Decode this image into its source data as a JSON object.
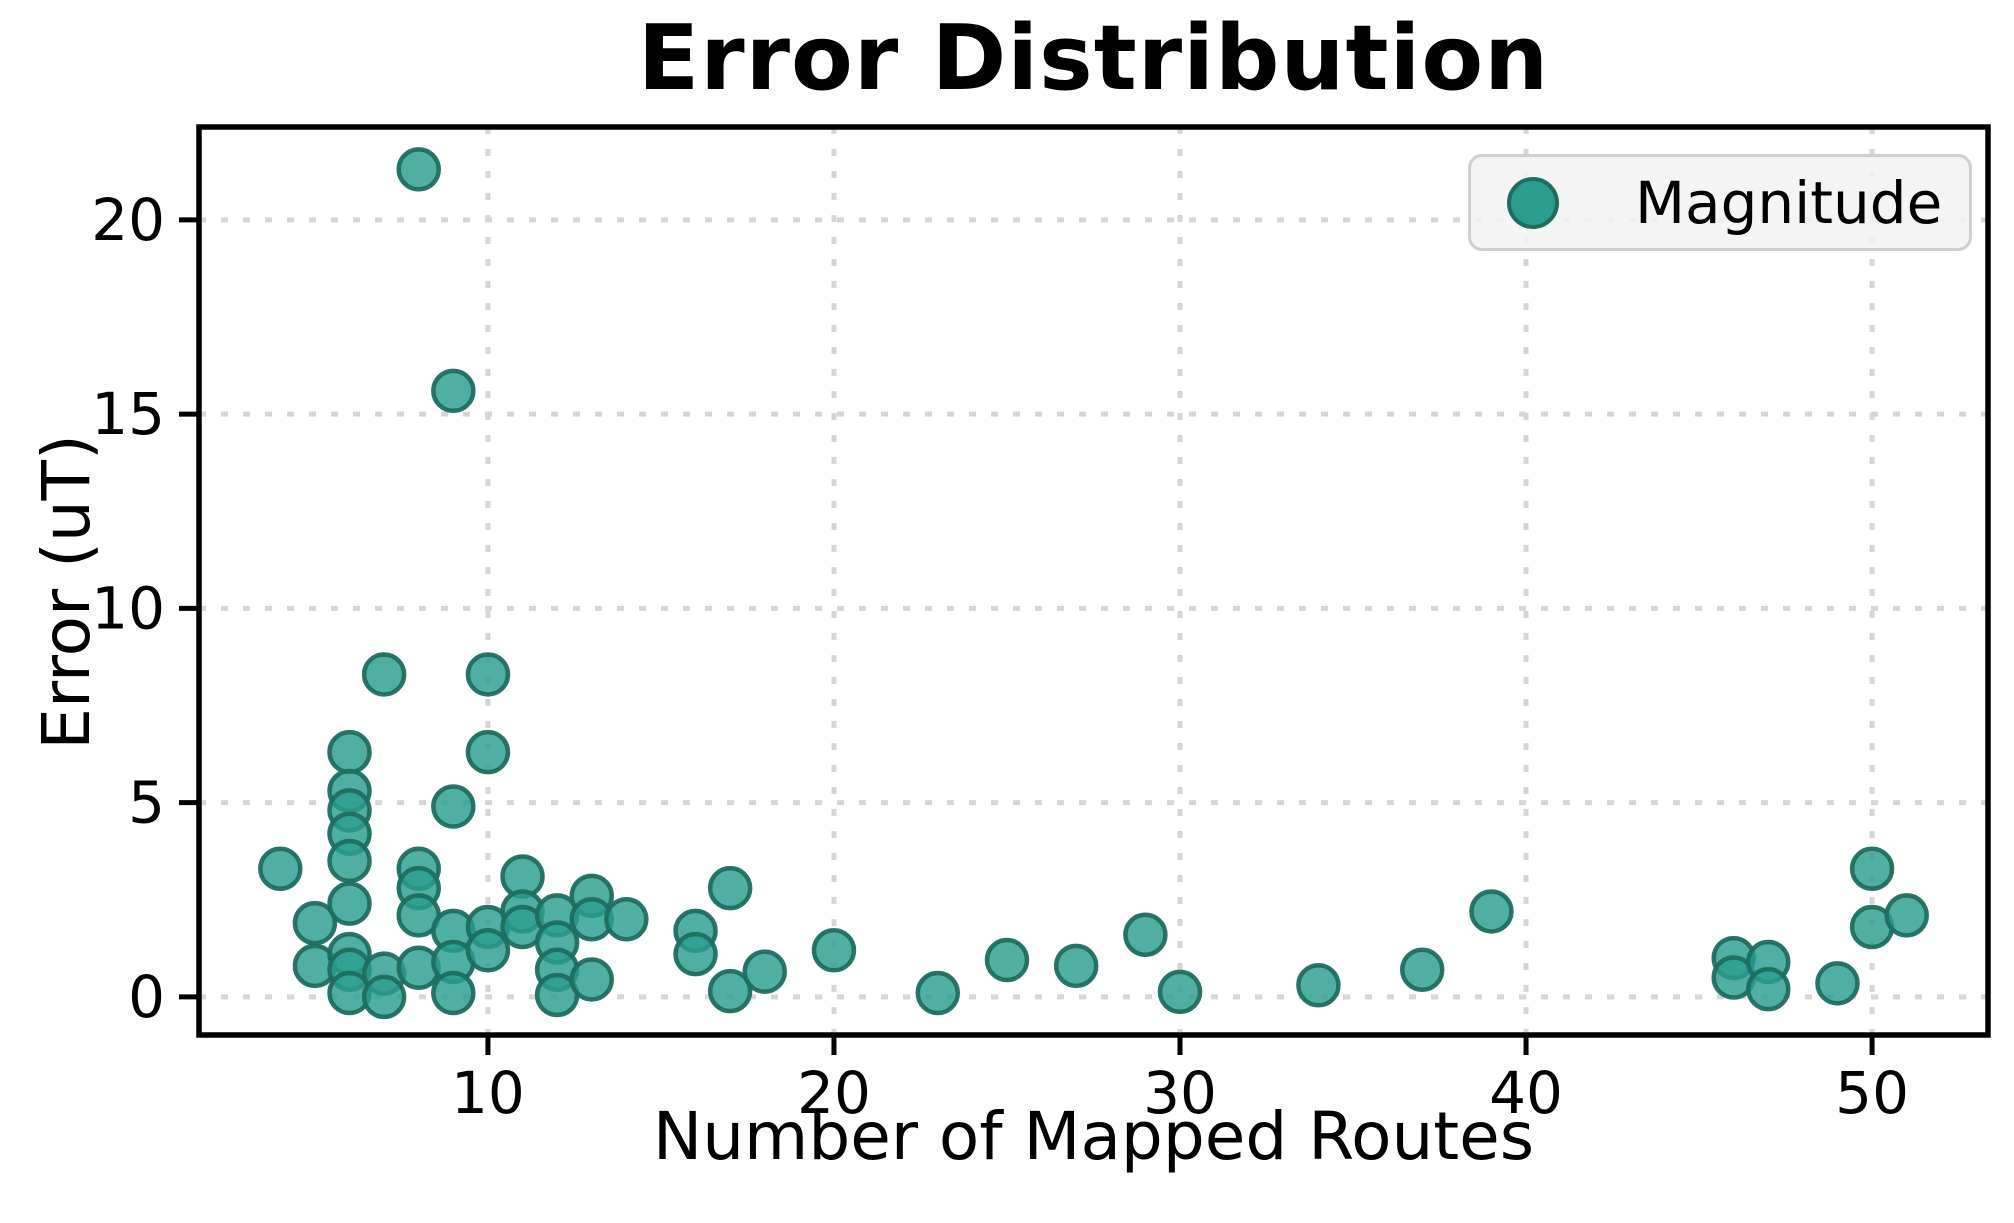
{
  "chart_data": {
    "type": "scatter",
    "title": "Error Distribution",
    "xlabel": "Number of Mapped Routes",
    "ylabel": "Error (uT)",
    "xlim": [
      1.65,
      53.35
    ],
    "ylim": [
      -0.98,
      22.39
    ],
    "xticks": [
      10,
      20,
      30,
      40,
      50
    ],
    "yticks": [
      0,
      5,
      10,
      15,
      20
    ],
    "grid": true,
    "grid_style": "dotted",
    "legend_position": "upper right",
    "series": [
      {
        "name": "Magnitude",
        "points": [
          [
            4,
            3.3
          ],
          [
            5,
            1.9
          ],
          [
            5,
            0.8
          ],
          [
            6,
            6.3
          ],
          [
            6,
            5.3
          ],
          [
            6,
            4.8
          ],
          [
            6,
            4.2
          ],
          [
            6,
            3.5
          ],
          [
            6,
            2.4
          ],
          [
            6,
            1.1
          ],
          [
            6,
            0.7
          ],
          [
            6,
            0.1
          ],
          [
            7,
            8.3
          ],
          [
            7,
            0.6
          ],
          [
            7,
            0.0
          ],
          [
            8,
            21.3
          ],
          [
            8,
            3.3
          ],
          [
            8,
            2.8
          ],
          [
            8,
            2.1
          ],
          [
            8,
            0.75
          ],
          [
            9,
            15.6
          ],
          [
            9,
            4.9
          ],
          [
            9,
            1.7
          ],
          [
            9,
            0.9
          ],
          [
            9,
            0.1
          ],
          [
            10,
            8.3
          ],
          [
            10,
            6.3
          ],
          [
            10,
            1.8
          ],
          [
            10,
            1.2
          ],
          [
            11,
            3.1
          ],
          [
            11,
            2.2
          ],
          [
            11,
            1.8
          ],
          [
            12,
            2.1
          ],
          [
            12,
            1.4
          ],
          [
            12,
            0.7
          ],
          [
            12,
            0.05
          ],
          [
            13,
            2.6
          ],
          [
            13,
            2.0
          ],
          [
            13,
            0.45
          ],
          [
            14,
            2.0
          ],
          [
            16,
            1.7
          ],
          [
            16,
            1.1
          ],
          [
            17,
            2.8
          ],
          [
            17,
            0.15
          ],
          [
            18,
            0.65
          ],
          [
            20,
            1.2
          ],
          [
            23,
            0.1
          ],
          [
            25,
            0.95
          ],
          [
            27,
            0.8
          ],
          [
            29,
            1.6
          ],
          [
            30,
            0.13
          ],
          [
            34,
            0.3
          ],
          [
            37,
            0.7
          ],
          [
            39,
            2.2
          ],
          [
            46,
            1.0
          ],
          [
            46,
            0.5
          ],
          [
            47,
            0.9
          ],
          [
            47,
            0.2
          ],
          [
            49,
            0.35
          ],
          [
            50,
            3.3
          ],
          [
            50,
            1.8
          ],
          [
            51,
            2.1
          ]
        ]
      }
    ]
  },
  "style": {
    "marker_fill": "#2a9d8f",
    "marker_edge": "#1d6e5f",
    "grid_color": "#d6d6d6",
    "spine_color": "#000000",
    "legend_bg": "#f2f2f2",
    "legend_border": "#cfcfcf",
    "background": "#ffffff"
  }
}
